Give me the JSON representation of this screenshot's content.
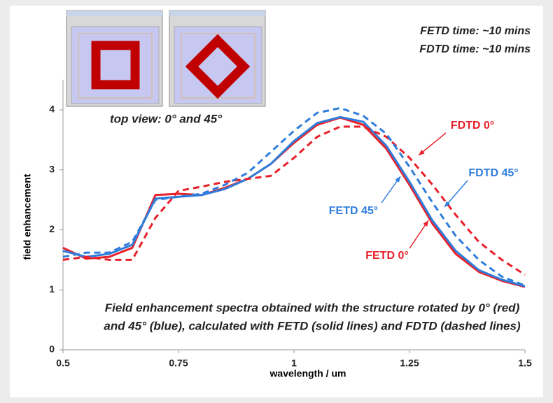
{
  "chart_data": {
    "type": "line",
    "x_label": "wavelength / um",
    "y_label": "field enhancement",
    "x": [
      0.5,
      0.55,
      0.6,
      0.65,
      0.7,
      0.75,
      0.8,
      0.85,
      0.9,
      0.95,
      1.0,
      1.05,
      1.1,
      1.15,
      1.2,
      1.25,
      1.3,
      1.35,
      1.4,
      1.45,
      1.5
    ],
    "series": [
      {
        "name": "FETD 0°",
        "color": "#e8202a",
        "dashed": false,
        "values": [
          1.7,
          1.52,
          1.55,
          1.7,
          2.58,
          2.6,
          2.58,
          2.7,
          2.85,
          3.1,
          3.45,
          3.75,
          3.87,
          3.75,
          3.35,
          2.75,
          2.1,
          1.6,
          1.3,
          1.15,
          1.05
        ]
      },
      {
        "name": "FETD 45°",
        "color": "#2f7ddb",
        "dashed": false,
        "values": [
          1.65,
          1.55,
          1.6,
          1.75,
          2.52,
          2.55,
          2.58,
          2.68,
          2.85,
          3.1,
          3.48,
          3.78,
          3.88,
          3.8,
          3.4,
          2.8,
          2.15,
          1.65,
          1.33,
          1.17,
          1.06
        ]
      },
      {
        "name": "FDTD 0°",
        "color": "#e8202a",
        "dashed": true,
        "values": [
          1.5,
          1.55,
          1.5,
          1.5,
          2.2,
          2.65,
          2.72,
          2.8,
          2.85,
          2.9,
          3.2,
          3.55,
          3.72,
          3.72,
          3.55,
          3.2,
          2.75,
          2.25,
          1.8,
          1.5,
          1.25
        ]
      },
      {
        "name": "FDTD 45°",
        "color": "#2f7ddb",
        "dashed": true,
        "values": [
          1.55,
          1.62,
          1.62,
          1.8,
          2.5,
          2.55,
          2.6,
          2.75,
          2.95,
          3.3,
          3.65,
          3.95,
          4.03,
          3.9,
          3.6,
          3.05,
          2.45,
          1.9,
          1.5,
          1.22,
          1.07
        ]
      }
    ],
    "xlim": [
      0.5,
      1.5
    ],
    "ylim": [
      0,
      4.5
    ],
    "xticks": [
      0.5,
      0.75,
      1,
      1.25,
      1.5
    ],
    "yticks": [
      0,
      1,
      2,
      3,
      4
    ],
    "annotations": [
      {
        "text": "FETD time: ~10 mins",
        "color": "#222222"
      },
      {
        "text": "FDTD time: ~10 mins",
        "color": "#222222"
      },
      {
        "text": "top view: 0° and 45°",
        "color": "#222222"
      },
      {
        "text": "Field enhancement spectra obtained with the structure rotated by 0° (red)",
        "color": "#222222"
      },
      {
        "text": "and 45° (blue), calculated with FETD (solid lines) and FDTD (dashed lines)",
        "color": "#222222"
      }
    ]
  }
}
